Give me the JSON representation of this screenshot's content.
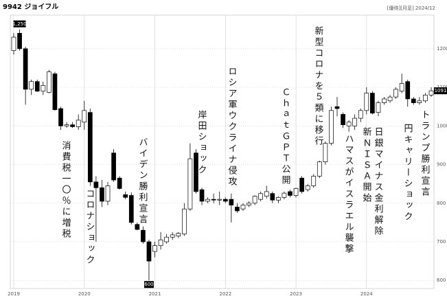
{
  "chart_data": {
    "type": "candlestick",
    "title": "9942 ジョイフル",
    "subtitle": "[優待][月足] 2024/12",
    "categories": [
      "2019",
      null,
      null,
      null,
      null,
      null,
      null,
      null,
      null,
      null,
      null,
      null,
      "2020",
      null,
      null,
      null,
      null,
      null,
      null,
      null,
      null,
      null,
      null,
      null,
      "2021",
      null,
      null,
      null,
      null,
      null,
      null,
      null,
      null,
      null,
      null,
      null,
      "2022",
      null,
      null,
      null,
      null,
      null,
      null,
      null,
      null,
      null,
      null,
      null,
      "2023",
      null,
      null,
      null,
      null,
      null,
      null,
      null,
      null,
      null,
      null,
      null,
      "2024",
      null,
      null,
      null,
      null,
      null,
      null,
      null,
      null,
      null,
      null,
      null
    ],
    "open": [
      1195,
      1240,
      1200,
      1095,
      1115,
      1090,
      1087,
      1135,
      1045,
      1000,
      1003,
      998,
      1010,
      1035,
      855,
      840,
      805,
      930,
      865,
      822,
      820,
      745,
      730,
      700,
      675,
      690,
      700,
      712,
      715,
      720,
      785,
      930,
      835,
      805,
      810,
      808,
      810,
      810,
      790,
      785,
      795,
      800,
      810,
      818,
      825,
      808,
      815,
      830,
      820,
      865,
      835,
      845,
      870,
      907,
      955,
      1050,
      1030,
      1000,
      1000,
      1020,
      1040,
      1085,
      1035,
      1060,
      1065,
      1075,
      1090,
      1115,
      1070,
      1060,
      1065,
      1080
    ],
    "high": [
      1240,
      1250,
      1205,
      1120,
      1120,
      1115,
      1145,
      1140,
      1050,
      1010,
      1010,
      1030,
      1065,
      1045,
      870,
      860,
      855,
      940,
      870,
      830,
      828,
      750,
      740,
      705,
      700,
      725,
      720,
      725,
      725,
      800,
      955,
      940,
      840,
      815,
      825,
      830,
      815,
      825,
      800,
      800,
      805,
      820,
      830,
      845,
      830,
      818,
      830,
      835,
      840,
      870,
      850,
      875,
      910,
      960,
      1050,
      1075,
      1035,
      1015,
      1030,
      1045,
      1100,
      1090,
      1065,
      1075,
      1080,
      1100,
      1135,
      1120,
      1075,
      1075,
      1085,
      1100
    ],
    "low": [
      1185,
      1195,
      1055,
      1080,
      1088,
      1080,
      1085,
      1040,
      990,
      995,
      995,
      990,
      990,
      845,
      700,
      790,
      795,
      855,
      835,
      810,
      745,
      730,
      695,
      600,
      660,
      680,
      695,
      705,
      710,
      715,
      780,
      825,
      795,
      800,
      800,
      795,
      800,
      750,
      775,
      780,
      790,
      795,
      805,
      812,
      800,
      800,
      810,
      815,
      815,
      825,
      830,
      840,
      865,
      900,
      950,
      1025,
      995,
      985,
      990,
      1010,
      1030,
      1030,
      1025,
      1055,
      1060,
      1070,
      1085,
      1050,
      1055,
      1055,
      1060,
      1075
    ],
    "close": [
      1230,
      1200,
      1095,
      1115,
      1090,
      1105,
      1140,
      1042,
      1000,
      1003,
      998,
      1015,
      1040,
      855,
      840,
      805,
      845,
      860,
      838,
      815,
      750,
      732,
      700,
      650,
      690,
      705,
      712,
      718,
      722,
      785,
      915,
      830,
      805,
      810,
      808,
      810,
      805,
      795,
      780,
      795,
      800,
      818,
      825,
      830,
      808,
      815,
      826,
      820,
      838,
      830,
      845,
      870,
      907,
      955,
      1040,
      1045,
      1003,
      1010,
      1020,
      1040,
      1085,
      1033,
      1060,
      1070,
      1075,
      1095,
      1110,
      1070,
      1060,
      1065,
      1080,
      1091
    ],
    "high_label": "1,250",
    "ylim": [
      579,
      1287
    ],
    "yticks": [
      600,
      700,
      800,
      900,
      1000,
      1100,
      1200
    ],
    "grid": true,
    "up_color": "#ffffff",
    "down_color": "#000000",
    "annotations": [
      "消費税一〇％に増税",
      "コロナショック",
      "バイデン勝利宣言",
      "岸田ショック",
      "ロシア軍ウクライナ侵攻",
      "ＣｈａｔＧＰＴ公開",
      "新型コロナを５類に移行",
      "ハマスがイスラエル襲撃",
      "新ＮＩＳＡ開始",
      "日銀マイナス金利解除",
      "円キャリーショック",
      "トランプ勝利宣言"
    ]
  }
}
